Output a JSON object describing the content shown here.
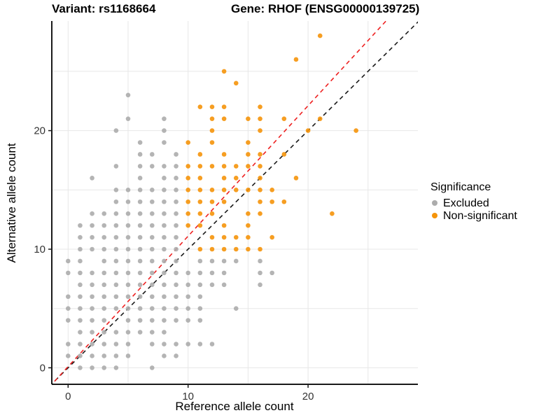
{
  "title": {
    "variant": "Variant: rs1168664",
    "gene": "Gene: RHOF (ENSG00000139725)"
  },
  "axes": {
    "x": {
      "label": "Reference allele count",
      "ticks": [
        0,
        10,
        20
      ],
      "gridlines": [
        0,
        5,
        10,
        15,
        20,
        25
      ],
      "range": [
        -1.4,
        29.2
      ]
    },
    "y": {
      "label": "Alternative allele count",
      "ticks": [
        0,
        10,
        20
      ],
      "gridlines": [
        0,
        5,
        10,
        15,
        20,
        25
      ],
      "range": [
        -1.4,
        29.2
      ]
    }
  },
  "legend": {
    "title": "Significance",
    "items": [
      {
        "label": "Excluded",
        "color": "#ACACAC"
      },
      {
        "label": "Non-significant",
        "color": "#F5940A"
      }
    ]
  },
  "colors": {
    "excluded": "#ACACAC",
    "non_significant": "#F5940A",
    "identity_line": "#1A1A1A",
    "ratio_line": "#EE2020",
    "gridline": "#E7E7E7",
    "axis_line": "#1A1A1A"
  },
  "chart_data": {
    "type": "scatter",
    "title": "Variant: rs1168664 — Gene: RHOF (ENSG00000139725)",
    "xlabel": "Reference allele count",
    "ylabel": "Alternative allele count",
    "xlim": [
      -1.4,
      29.2
    ],
    "ylim": [
      -1.4,
      29.2
    ],
    "legend_position": "right",
    "grid": true,
    "reference_lines": [
      {
        "name": "identity",
        "slope": 1.0,
        "intercept": 0.0,
        "color": "#1A1A1A",
        "style": "dashed"
      },
      {
        "name": "fitted-ratio",
        "slope": 1.1,
        "intercept": 0.1,
        "color": "#EE2020",
        "style": "dashed"
      }
    ],
    "series": [
      {
        "name": "Excluded",
        "color": "#ACACAC",
        "points": [
          [
            5,
            23
          ],
          [
            5,
            21
          ],
          [
            8,
            21
          ],
          [
            4,
            20
          ],
          [
            8,
            20
          ],
          [
            6,
            19
          ],
          [
            8,
            19
          ],
          [
            6,
            18
          ],
          [
            7,
            18
          ],
          [
            9,
            18
          ],
          [
            4,
            17
          ],
          [
            6,
            17
          ],
          [
            7,
            17
          ],
          [
            8,
            17
          ],
          [
            9,
            17
          ],
          [
            2,
            16
          ],
          [
            6,
            16
          ],
          [
            8,
            16
          ],
          [
            9,
            16
          ],
          [
            4,
            15
          ],
          [
            5,
            15
          ],
          [
            6,
            15
          ],
          [
            7,
            15
          ],
          [
            8,
            15
          ],
          [
            9,
            15
          ],
          [
            4,
            14
          ],
          [
            5,
            14
          ],
          [
            6,
            14
          ],
          [
            7,
            14
          ],
          [
            8,
            14
          ],
          [
            9,
            14
          ],
          [
            2,
            13
          ],
          [
            3,
            13
          ],
          [
            4,
            13
          ],
          [
            5,
            13
          ],
          [
            6,
            13
          ],
          [
            7,
            13
          ],
          [
            8,
            13
          ],
          [
            9,
            13
          ],
          [
            1,
            12
          ],
          [
            2,
            12
          ],
          [
            3,
            12
          ],
          [
            4,
            12
          ],
          [
            5,
            12
          ],
          [
            6,
            12
          ],
          [
            7,
            12
          ],
          [
            8,
            12
          ],
          [
            9,
            12
          ],
          [
            1,
            11
          ],
          [
            2,
            11
          ],
          [
            3,
            11
          ],
          [
            4,
            11
          ],
          [
            5,
            11
          ],
          [
            6,
            11
          ],
          [
            7,
            11
          ],
          [
            8,
            11
          ],
          [
            9,
            11
          ],
          [
            1,
            10
          ],
          [
            2,
            10
          ],
          [
            3,
            10
          ],
          [
            4,
            10
          ],
          [
            5,
            10
          ],
          [
            6,
            10
          ],
          [
            7,
            10
          ],
          [
            8,
            10
          ],
          [
            9,
            10
          ],
          [
            0,
            9
          ],
          [
            1,
            9
          ],
          [
            3,
            9
          ],
          [
            4,
            9
          ],
          [
            5,
            9
          ],
          [
            6,
            9
          ],
          [
            7,
            9
          ],
          [
            8,
            9
          ],
          [
            9,
            9
          ],
          [
            11,
            9
          ],
          [
            12,
            9
          ],
          [
            13,
            9
          ],
          [
            14,
            9
          ],
          [
            16,
            9
          ],
          [
            0,
            8
          ],
          [
            1,
            8
          ],
          [
            2,
            8
          ],
          [
            3,
            8
          ],
          [
            4,
            8
          ],
          [
            5,
            8
          ],
          [
            6,
            8
          ],
          [
            7,
            8
          ],
          [
            8,
            8
          ],
          [
            9,
            8
          ],
          [
            10,
            8
          ],
          [
            11,
            8
          ],
          [
            12,
            8
          ],
          [
            13,
            8
          ],
          [
            16,
            8
          ],
          [
            17,
            8
          ],
          [
            1,
            7
          ],
          [
            2,
            7
          ],
          [
            3,
            7
          ],
          [
            4,
            7
          ],
          [
            5,
            7
          ],
          [
            6,
            7
          ],
          [
            7,
            7
          ],
          [
            8,
            7
          ],
          [
            9,
            7
          ],
          [
            10,
            7
          ],
          [
            11,
            7
          ],
          [
            12,
            7
          ],
          [
            13,
            7
          ],
          [
            16,
            7
          ],
          [
            0,
            6
          ],
          [
            1,
            6
          ],
          [
            2,
            6
          ],
          [
            3,
            6
          ],
          [
            4,
            6
          ],
          [
            5,
            6
          ],
          [
            6,
            6
          ],
          [
            7,
            6
          ],
          [
            8,
            6
          ],
          [
            9,
            6
          ],
          [
            10,
            6
          ],
          [
            11,
            6
          ],
          [
            0,
            5
          ],
          [
            1,
            5
          ],
          [
            2,
            5
          ],
          [
            3,
            5
          ],
          [
            4,
            5
          ],
          [
            5,
            5
          ],
          [
            6,
            5
          ],
          [
            7,
            5
          ],
          [
            8,
            5
          ],
          [
            9,
            5
          ],
          [
            10,
            5
          ],
          [
            11,
            5
          ],
          [
            14,
            5
          ],
          [
            0,
            4
          ],
          [
            1,
            4
          ],
          [
            2,
            4
          ],
          [
            3,
            4
          ],
          [
            5,
            4
          ],
          [
            6,
            4
          ],
          [
            7,
            4
          ],
          [
            8,
            4
          ],
          [
            9,
            4
          ],
          [
            10,
            4
          ],
          [
            11,
            4
          ],
          [
            1,
            3
          ],
          [
            2,
            3
          ],
          [
            3,
            3
          ],
          [
            4,
            3
          ],
          [
            5,
            3
          ],
          [
            6,
            3
          ],
          [
            7,
            3
          ],
          [
            8,
            3
          ],
          [
            0,
            2
          ],
          [
            1,
            2
          ],
          [
            2,
            2
          ],
          [
            3,
            2
          ],
          [
            4,
            2
          ],
          [
            5,
            2
          ],
          [
            7,
            2
          ],
          [
            8,
            2
          ],
          [
            9,
            2
          ],
          [
            10,
            2
          ],
          [
            11,
            2
          ],
          [
            12,
            2
          ],
          [
            0,
            1
          ],
          [
            1,
            1
          ],
          [
            2,
            1
          ],
          [
            3,
            1
          ],
          [
            4,
            1
          ],
          [
            5,
            1
          ],
          [
            8,
            1
          ],
          [
            9,
            1
          ],
          [
            1,
            0
          ],
          [
            2,
            0
          ],
          [
            3,
            0
          ],
          [
            4,
            0
          ],
          [
            7,
            0
          ]
        ]
      },
      {
        "name": "Non-significant",
        "color": "#F5940A",
        "points": [
          [
            21,
            28
          ],
          [
            19,
            26
          ],
          [
            13,
            25
          ],
          [
            14,
            24
          ],
          [
            11,
            22
          ],
          [
            12,
            22
          ],
          [
            13,
            22
          ],
          [
            16,
            22
          ],
          [
            12,
            21
          ],
          [
            13,
            21
          ],
          [
            15,
            21
          ],
          [
            16,
            21
          ],
          [
            18,
            21
          ],
          [
            21,
            21
          ],
          [
            12,
            20
          ],
          [
            16,
            20
          ],
          [
            20,
            20
          ],
          [
            24,
            20
          ],
          [
            10,
            19
          ],
          [
            12,
            19
          ],
          [
            15,
            19
          ],
          [
            11,
            18
          ],
          [
            13,
            18
          ],
          [
            15,
            18
          ],
          [
            16,
            18
          ],
          [
            18,
            18
          ],
          [
            10,
            17
          ],
          [
            11,
            17
          ],
          [
            12,
            17
          ],
          [
            13,
            17
          ],
          [
            14,
            17
          ],
          [
            15,
            17
          ],
          [
            16,
            17
          ],
          [
            10,
            16
          ],
          [
            11,
            16
          ],
          [
            13,
            16
          ],
          [
            14,
            16
          ],
          [
            16,
            16
          ],
          [
            19,
            16
          ],
          [
            10,
            15
          ],
          [
            11,
            15
          ],
          [
            12,
            15
          ],
          [
            13,
            15
          ],
          [
            14,
            15
          ],
          [
            15,
            15
          ],
          [
            16,
            15
          ],
          [
            17,
            15
          ],
          [
            10,
            14
          ],
          [
            11,
            14
          ],
          [
            12,
            14
          ],
          [
            13,
            14
          ],
          [
            16,
            14
          ],
          [
            17,
            14
          ],
          [
            18,
            14
          ],
          [
            10,
            13
          ],
          [
            11,
            13
          ],
          [
            12,
            13
          ],
          [
            15,
            13
          ],
          [
            16,
            13
          ],
          [
            22,
            13
          ],
          [
            10,
            12
          ],
          [
            11,
            12
          ],
          [
            13,
            12
          ],
          [
            15,
            12
          ],
          [
            12,
            11
          ],
          [
            13,
            11
          ],
          [
            14,
            11
          ],
          [
            15,
            11
          ],
          [
            17,
            11
          ],
          [
            11,
            10
          ],
          [
            12,
            10
          ],
          [
            13,
            10
          ],
          [
            14,
            10
          ],
          [
            15,
            10
          ],
          [
            16,
            10
          ]
        ]
      }
    ]
  }
}
